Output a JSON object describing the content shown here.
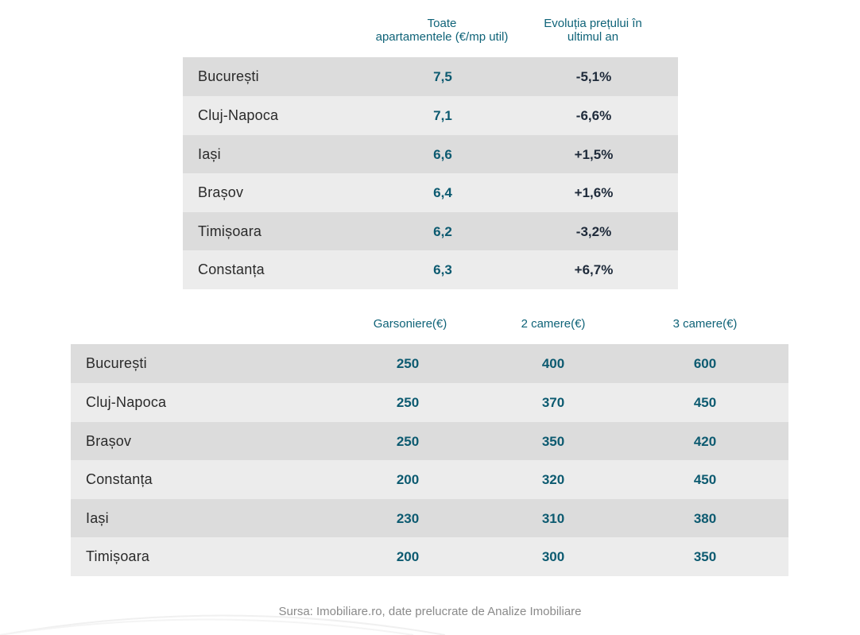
{
  "table1": {
    "headers": [
      [
        "Toate",
        "apartamentele  (€/mp util)"
      ],
      [
        "Evoluția prețului în",
        "ultimul an"
      ]
    ],
    "rows": [
      {
        "city": "București",
        "value": "7,5",
        "change": "-5,1%"
      },
      {
        "city": "Cluj-Napoca",
        "value": "7,1",
        "change": "-6,6%"
      },
      {
        "city": "Iași",
        "value": "6,6",
        "change": "+1,5%"
      },
      {
        "city": "Brașov",
        "value": "6,4",
        "change": "+1,6%"
      },
      {
        "city": "Timișoara",
        "value": "6,2",
        "change": "-3,2%"
      },
      {
        "city": "Constanța",
        "value": "6,3",
        "change": "+6,7%"
      }
    ]
  },
  "table2": {
    "headers": [
      "Garsoniere(€)",
      "2 camere(€)",
      "3 camere(€)"
    ],
    "rows": [
      {
        "city": "București",
        "studio": "250",
        "two": "400",
        "three": "600"
      },
      {
        "city": "Cluj-Napoca",
        "studio": "250",
        "two": "370",
        "three": "450"
      },
      {
        "city": "Brașov",
        "studio": "250",
        "two": "350",
        "three": "420"
      },
      {
        "city": "Constanța",
        "studio": "200",
        "two": "320",
        "three": "450"
      },
      {
        "city": "Iași",
        "studio": "230",
        "two": "310",
        "three": "380"
      },
      {
        "city": "Timișoara",
        "studio": "200",
        "two": "300",
        "three": "350"
      }
    ]
  },
  "source": "Sursa: Imobiliare.ro, date prelucrate de Analize Imobiliare",
  "colors": {
    "accent": "#0c5a70",
    "row_dark": "#dcdcdc",
    "row_light": "#ececec"
  }
}
